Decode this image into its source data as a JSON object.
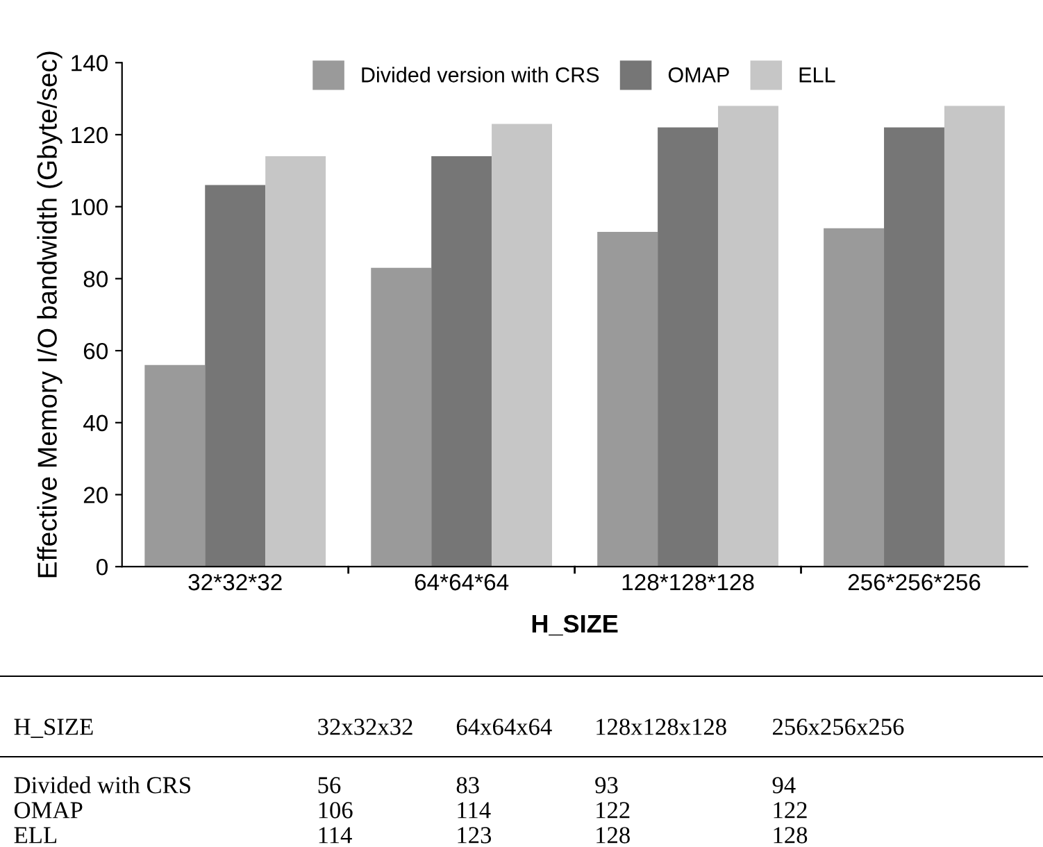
{
  "chart_data": [
    {
      "type": "bar",
      "xlabel": "H_SIZE",
      "ylabel": "Effective Memory I/O bandwidth (Gbyte/sec)",
      "categories": [
        "32*32*32",
        "64*64*64",
        "128*128*128",
        "256*256*256"
      ],
      "series": [
        {
          "name": "Divided version with CRS",
          "color": "#9a9a9a",
          "values": [
            56,
            83,
            93,
            94
          ]
        },
        {
          "name": "OMAP",
          "color": "#767676",
          "values": [
            106,
            114,
            122,
            122
          ]
        },
        {
          "name": "ELL",
          "color": "#c6c6c6",
          "values": [
            114,
            123,
            128,
            128
          ]
        }
      ],
      "ylim": [
        0,
        140
      ],
      "yticks": [
        0,
        20,
        40,
        60,
        80,
        100,
        120,
        140
      ],
      "grid": false,
      "legend": "top"
    },
    {
      "type": "other",
      "annotations": [
        "H_SIZE",
        "32x32x32",
        "64x64x64",
        "128x128x128",
        "256x256x256",
        "Divided with CRS",
        "56",
        "83",
        "93",
        "94",
        "OMAP",
        "106",
        "114",
        "122",
        "122",
        "ELL",
        "114",
        "123",
        "128",
        "128"
      ]
    }
  ]
}
